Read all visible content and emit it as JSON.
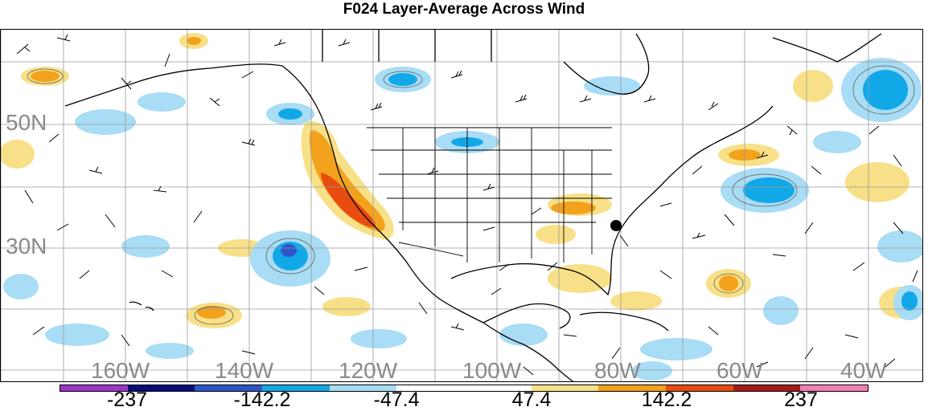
{
  "title": "F024 Layer-Average Across Wind",
  "lat_labels": [
    "50N",
    "30N"
  ],
  "lon_labels": [
    "160W",
    "140W",
    "120W",
    "100W",
    "80W",
    "60W",
    "40W"
  ],
  "colorbar": {
    "labels": [
      "-237",
      "-142.2",
      "-47.4",
      "47.4",
      "142.2",
      "237"
    ],
    "colors": [
      "#9b36c9",
      "#0a0a7a",
      "#2f55c9",
      "#12a8e8",
      "#a9dcf5",
      "#ffffff",
      "#ffffff",
      "#f8e088",
      "#f2a21c",
      "#e84c10",
      "#a31b1b",
      "#ef82b2"
    ]
  },
  "marker": "station-dot"
}
